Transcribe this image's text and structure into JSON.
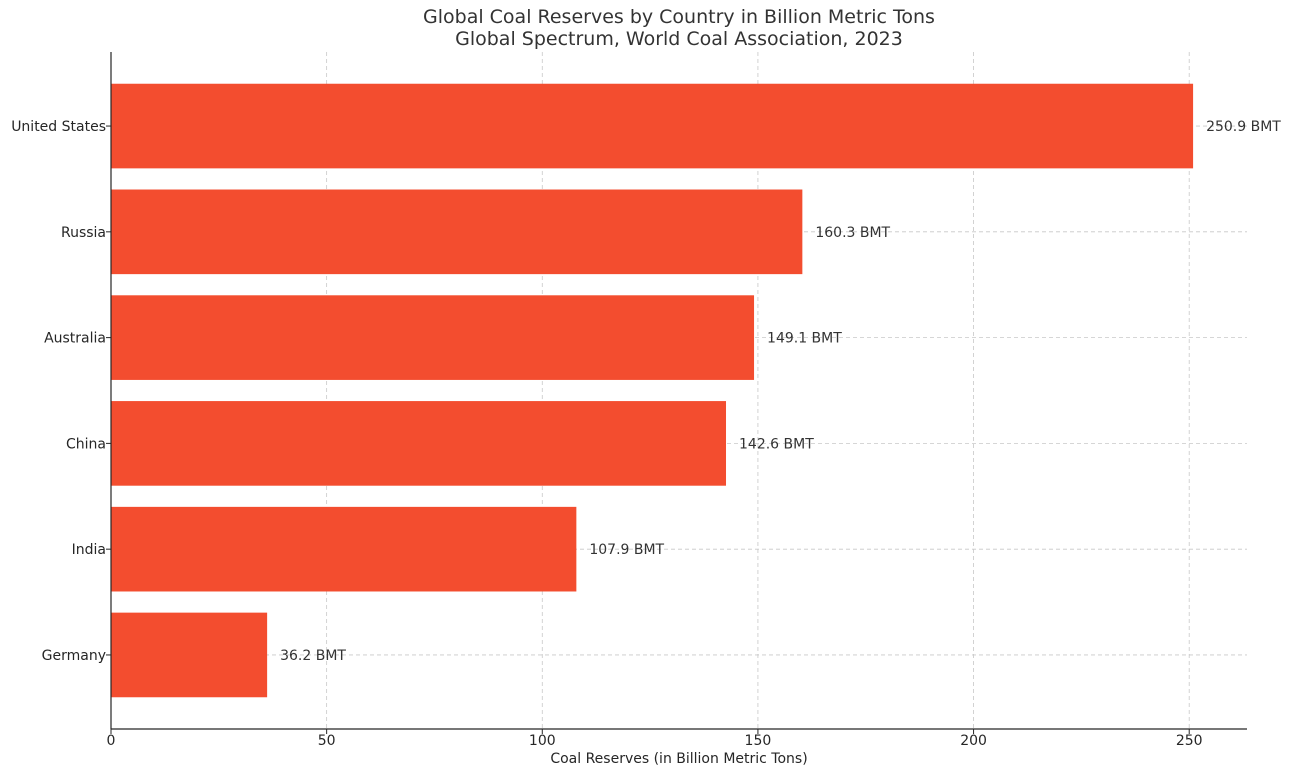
{
  "chart_data": {
    "type": "bar",
    "orientation": "horizontal",
    "title": "Global Coal Reserves by Country in Billion Metric Tons",
    "subtitle": "Global Spectrum, World Coal Association, 2023",
    "xlabel": "Coal Reserves (in Billion Metric Tons)",
    "ylabel": "",
    "categories": [
      "United States",
      "Russia",
      "Australia",
      "China",
      "India",
      "Germany"
    ],
    "values": [
      250.9,
      160.3,
      149.1,
      142.6,
      107.9,
      36.2
    ],
    "value_labels": [
      "250.9 BMT",
      "160.3 BMT",
      "149.1 BMT",
      "142.6 BMT",
      "107.9 BMT",
      "36.2 BMT"
    ],
    "xlim": [
      0,
      263.4
    ],
    "xticks": [
      0,
      50,
      100,
      150,
      200,
      250
    ],
    "xtick_labels": [
      "0",
      "50",
      "100",
      "150",
      "200",
      "250"
    ],
    "grid": true,
    "bar_color": "#f34d2f"
  }
}
